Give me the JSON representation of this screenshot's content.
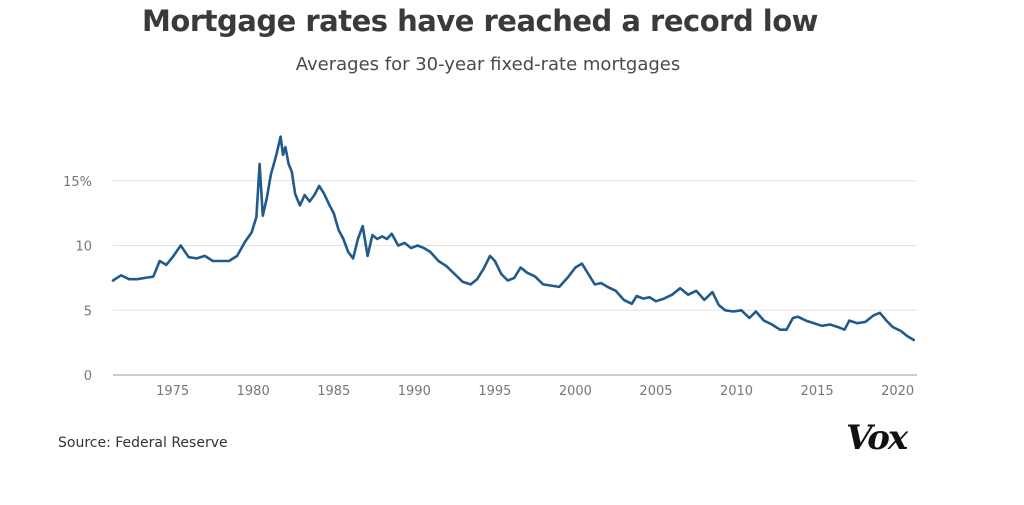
{
  "title": "Mortgage rates have reached a record low",
  "subtitle": "Averages for 30-year fixed-rate mortgages",
  "source": "Source: Federal Reserve",
  "logo": "Vox",
  "colors": {
    "line": "#215a8c",
    "grid": "#e2e2e2",
    "axis": "#999999",
    "tick_text": "#777777"
  },
  "chart_data": {
    "type": "line",
    "title": "Mortgage rates have reached a record low",
    "subtitle": "Averages for 30-year fixed-rate mortgages",
    "xlabel": "",
    "ylabel": "",
    "xlim": [
      1971.3,
      2021.2
    ],
    "ylim": [
      0,
      20
    ],
    "yticks": [
      0,
      5,
      10,
      15
    ],
    "ytick_labels": [
      "0",
      "5",
      "10",
      "15%"
    ],
    "xticks": [
      1975,
      1980,
      1985,
      1990,
      1995,
      2000,
      2005,
      2010,
      2015,
      2020
    ],
    "xtick_labels": [
      "1975",
      "1980",
      "1985",
      "1990",
      "1995",
      "2000",
      "2005",
      "2010",
      "2015",
      "2020"
    ],
    "grid": true,
    "legend": "none",
    "series": [
      {
        "x": [
          1971.3,
          1971.8,
          1972.3,
          1972.8,
          1973.3,
          1973.8,
          1974.2,
          1974.6,
          1975.0,
          1975.5,
          1976.0,
          1976.5,
          1977.0,
          1977.5,
          1978.0,
          1978.5,
          1979.0,
          1979.5,
          1979.9,
          1980.2,
          1980.4,
          1980.6,
          1980.85,
          1981.1,
          1981.4,
          1981.7,
          1981.85,
          1982.0,
          1982.2,
          1982.4,
          1982.6,
          1982.9,
          1983.2,
          1983.5,
          1983.8,
          1984.1,
          1984.4,
          1984.7,
          1985.0,
          1985.3,
          1985.6,
          1985.9,
          1986.2,
          1986.5,
          1986.8,
          1987.1,
          1987.4,
          1987.7,
          1988.0,
          1988.3,
          1988.6,
          1989.0,
          1989.4,
          1989.8,
          1990.2,
          1990.6,
          1991.0,
          1991.5,
          1992.0,
          1992.5,
          1993.0,
          1993.5,
          1993.9,
          1994.3,
          1994.7,
          1995.0,
          1995.4,
          1995.8,
          1996.2,
          1996.6,
          1997.0,
          1997.5,
          1998.0,
          1998.5,
          1999.0,
          1999.5,
          2000.0,
          2000.4,
          2000.8,
          2001.2,
          2001.6,
          2002.0,
          2002.5,
          2003.0,
          2003.5,
          2003.8,
          2004.2,
          2004.6,
          2005.0,
          2005.5,
          2006.0,
          2006.5,
          2007.0,
          2007.5,
          2008.0,
          2008.5,
          2008.9,
          2009.3,
          2009.8,
          2010.3,
          2010.8,
          2011.2,
          2011.7,
          2012.2,
          2012.7,
          2013.1,
          2013.5,
          2013.8,
          2014.3,
          2014.8,
          2015.3,
          2015.8,
          2016.3,
          2016.7,
          2017.0,
          2017.5,
          2018.0,
          2018.5,
          2018.9,
          2019.3,
          2019.7,
          2020.2,
          2020.6,
          2021.0
        ],
        "y": [
          7.3,
          7.7,
          7.4,
          7.4,
          7.5,
          7.6,
          8.8,
          8.5,
          9.1,
          10.0,
          9.1,
          9.0,
          9.2,
          8.8,
          8.8,
          8.8,
          9.2,
          10.3,
          11.0,
          12.2,
          16.3,
          12.3,
          13.7,
          15.5,
          16.8,
          18.4,
          17.0,
          17.6,
          16.3,
          15.7,
          14.0,
          13.1,
          13.9,
          13.4,
          13.9,
          14.6,
          14.0,
          13.2,
          12.5,
          11.2,
          10.5,
          9.5,
          9.0,
          10.5,
          11.5,
          9.2,
          10.8,
          10.5,
          10.7,
          10.5,
          10.9,
          10.0,
          10.2,
          9.8,
          10.0,
          9.8,
          9.5,
          8.8,
          8.4,
          7.8,
          7.2,
          7.0,
          7.4,
          8.2,
          9.2,
          8.8,
          7.8,
          7.3,
          7.5,
          8.3,
          7.9,
          7.6,
          7.0,
          6.9,
          6.8,
          7.5,
          8.3,
          8.6,
          7.8,
          7.0,
          7.1,
          6.8,
          6.5,
          5.8,
          5.5,
          6.1,
          5.9,
          6.0,
          5.7,
          5.9,
          6.2,
          6.7,
          6.2,
          6.5,
          5.8,
          6.4,
          5.4,
          5.0,
          4.9,
          5.0,
          4.4,
          4.9,
          4.2,
          3.9,
          3.5,
          3.5,
          4.4,
          4.5,
          4.2,
          4.0,
          3.8,
          3.9,
          3.7,
          3.5,
          4.2,
          4.0,
          4.1,
          4.6,
          4.8,
          4.2,
          3.7,
          3.4,
          3.0,
          2.7
        ]
      }
    ]
  }
}
